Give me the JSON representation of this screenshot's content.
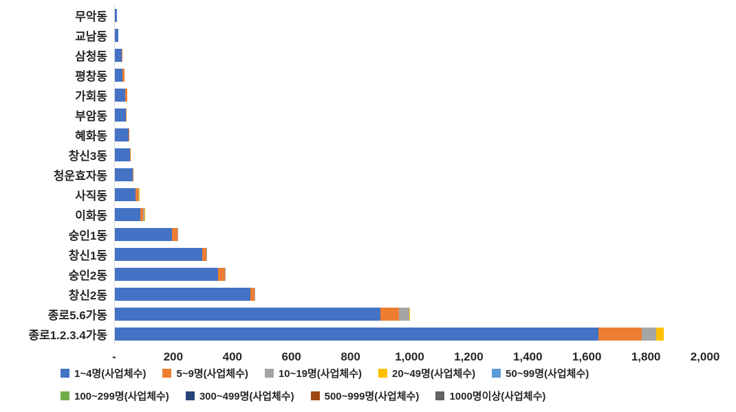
{
  "chart_data": {
    "type": "bar",
    "orientation": "horizontal",
    "stacked": true,
    "title": "",
    "xlabel": "",
    "ylabel": "",
    "xlim": [
      0,
      2000
    ],
    "x_ticks": [
      "-",
      "200",
      "400",
      "600",
      "800",
      "1,000",
      "1,200",
      "1,400",
      "1,600",
      "1,800",
      "2,000"
    ],
    "grid": false,
    "legend_position": "bottom",
    "categories": [
      "무악동",
      "교남동",
      "삼청동",
      "평창동",
      "가회동",
      "부암동",
      "혜화동",
      "창신3동",
      "청운효자동",
      "사직동",
      "이화동",
      "숭인1동",
      "창신1동",
      "숭인2동",
      "창신2동",
      "종로5.6가동",
      "종로1.2.3.4가동"
    ],
    "series": [
      {
        "name": "1~4명(사업체수)",
        "color": "#4472C4",
        "values": [
          10,
          15,
          26,
          28,
          38,
          40,
          48,
          53,
          62,
          72,
          88,
          195,
          298,
          352,
          460,
          900,
          1640
        ]
      },
      {
        "name": "5~9명(사업체수)",
        "color": "#ED7D31",
        "values": [
          0,
          0,
          3,
          7,
          6,
          2,
          3,
          3,
          3,
          10,
          10,
          20,
          13,
          22,
          14,
          65,
          145
        ]
      },
      {
        "name": "10~19명(사업체수)",
        "color": "#A5A5A5",
        "values": [
          0,
          0,
          0,
          0,
          0,
          0,
          0,
          0,
          0,
          2,
          4,
          1,
          3,
          3,
          3,
          33,
          50
        ]
      },
      {
        "name": "20~49명(사업체수)",
        "color": "#FFC000",
        "values": [
          0,
          0,
          0,
          0,
          0,
          0,
          0,
          0,
          0,
          2,
          3,
          0,
          0,
          0,
          0,
          2,
          25
        ]
      },
      {
        "name": "50~99명(사업체수)",
        "color": "#5B9BD5",
        "values": [
          0,
          0,
          0,
          0,
          0,
          0,
          0,
          0,
          0,
          0,
          0,
          0,
          0,
          0,
          0,
          0,
          0
        ]
      },
      {
        "name": "100~299명(사업체수)",
        "color": "#70AD47",
        "values": [
          0,
          0,
          0,
          0,
          0,
          0,
          0,
          0,
          0,
          0,
          0,
          0,
          0,
          0,
          0,
          0,
          0
        ]
      },
      {
        "name": "300~499명(사업체수)",
        "color": "#264478",
        "values": [
          0,
          0,
          0,
          0,
          0,
          0,
          0,
          0,
          0,
          0,
          0,
          0,
          0,
          0,
          0,
          0,
          0
        ]
      },
      {
        "name": "500~999명(사업체수)",
        "color": "#9E480E",
        "values": [
          0,
          0,
          0,
          0,
          0,
          0,
          0,
          0,
          0,
          0,
          0,
          0,
          0,
          0,
          0,
          0,
          0
        ]
      },
      {
        "name": "1000명이상(사업체수)",
        "color": "#636363",
        "values": [
          0,
          0,
          0,
          0,
          0,
          0,
          0,
          0,
          0,
          0,
          0,
          0,
          0,
          0,
          0,
          0,
          0
        ]
      }
    ],
    "legend_rows": [
      [
        0,
        1,
        2,
        3,
        4
      ],
      [
        5,
        6,
        7,
        8
      ]
    ]
  }
}
